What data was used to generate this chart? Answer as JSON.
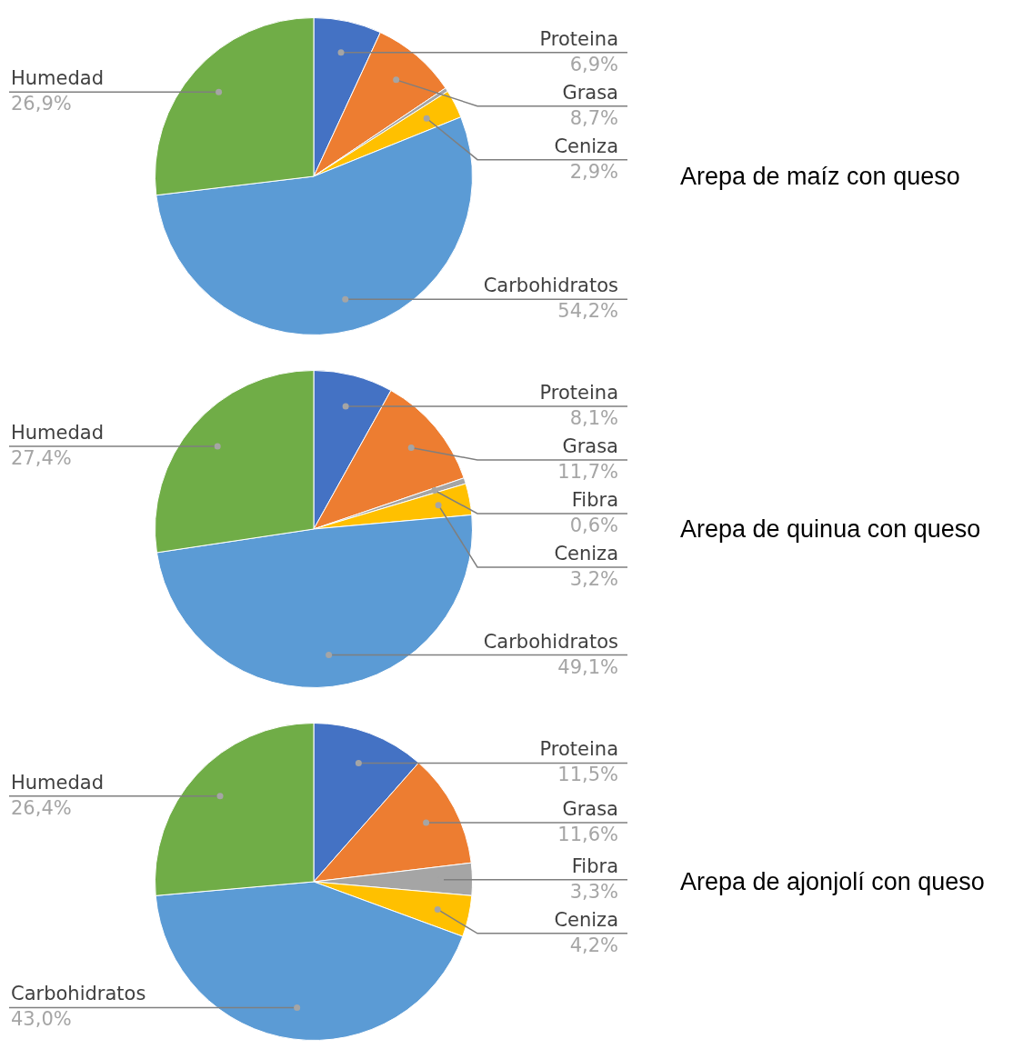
{
  "chart_data": [
    {
      "type": "pie",
      "title": "Arepa de maíz con queso",
      "categories": [
        "Proteina",
        "Grasa",
        null,
        "Ceniza",
        "Carbohidratos",
        "Humedad"
      ],
      "values": [
        6.9,
        8.7,
        0.4,
        2.9,
        54.2,
        26.9
      ],
      "value_labels": [
        "6,9%",
        "8,7%",
        null,
        "2,9%",
        "54,2%",
        "26,9%"
      ],
      "colors": [
        "#4472c4",
        "#ed7d31",
        "#a5a5a5",
        "#ffc000",
        "#5b9bd5",
        "#70ad47"
      ],
      "legend": false
    },
    {
      "type": "pie",
      "title": "Arepa de quinua con queso",
      "categories": [
        "Proteina",
        "Grasa",
        "Fibra",
        "Ceniza",
        "Carbohidratos",
        "Humedad"
      ],
      "values": [
        8.1,
        11.7,
        0.6,
        3.2,
        49.1,
        27.4
      ],
      "value_labels": [
        "8,1%",
        "11,7%",
        "0,6%",
        "3,2%",
        "49,1%",
        "27,4%"
      ],
      "colors": [
        "#4472c4",
        "#ed7d31",
        "#a5a5a5",
        "#ffc000",
        "#5b9bd5",
        "#70ad47"
      ],
      "legend": false
    },
    {
      "type": "pie",
      "title": "Arepa de ajonjolí con queso",
      "categories": [
        "Proteina",
        "Grasa",
        "Fibra",
        "Ceniza",
        "Carbohidratos",
        "Humedad"
      ],
      "values": [
        11.5,
        11.6,
        3.3,
        4.2,
        43.0,
        26.4
      ],
      "value_labels": [
        "11,5%",
        "11,6%",
        "3,3%",
        "4,2%",
        "43,0%",
        "26,4%"
      ],
      "colors": [
        "#4472c4",
        "#ed7d31",
        "#a5a5a5",
        "#ffc000",
        "#5b9bd5",
        "#70ad47"
      ],
      "legend": false
    }
  ]
}
